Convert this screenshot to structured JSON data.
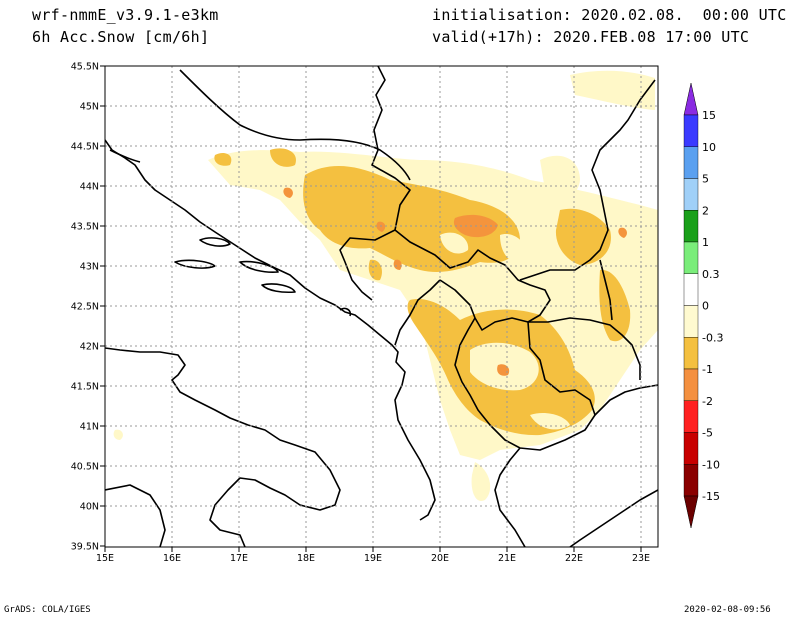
{
  "header": {
    "model": "wrf-nmmE_v3.9.1-e3km",
    "field": "6h Acc.Snow [cm/6h]",
    "init": "initialisation: 2020.02.08.  00:00 UTC",
    "valid": "valid(+17h): 2020.FEB.08 17:00 UTC"
  },
  "map": {
    "lon_labels": [
      "15E",
      "16E",
      "17E",
      "18E",
      "19E",
      "20E",
      "21E",
      "22E",
      "23E"
    ],
    "lat_labels": [
      "45.5N",
      "45N",
      "44.5N",
      "44N",
      "43.5N",
      "43N",
      "42.5N",
      "42N",
      "41.5N",
      "41N",
      "40.5N",
      "40N",
      "39.5N"
    ],
    "lon_range": [
      15,
      23.25
    ],
    "lat_range": [
      39.5,
      45.5
    ]
  },
  "legend": {
    "levels": [
      "15",
      "10",
      "5",
      "2",
      "1",
      "0.3",
      "0",
      "-0.3",
      "-1",
      "-2",
      "-5",
      "-10",
      "-15"
    ],
    "colors": [
      "#8a2be2",
      "#3a3aff",
      "#5aa0f0",
      "#a0d0f8",
      "#1aa01a",
      "#7aed7a",
      "#ffffff",
      "#fffad0",
      "#f4c040",
      "#f49040",
      "#ff2020",
      "#c80000",
      "#8a0000",
      "#6b0000"
    ]
  },
  "footer": {
    "left": "GrADS: COLA/IGES",
    "right": "2020-02-08-09:56"
  },
  "colors": {
    "light_snow": "#fff8c8",
    "moderate_snow": "#f4c040",
    "heavy_snow": "#f4943c"
  }
}
